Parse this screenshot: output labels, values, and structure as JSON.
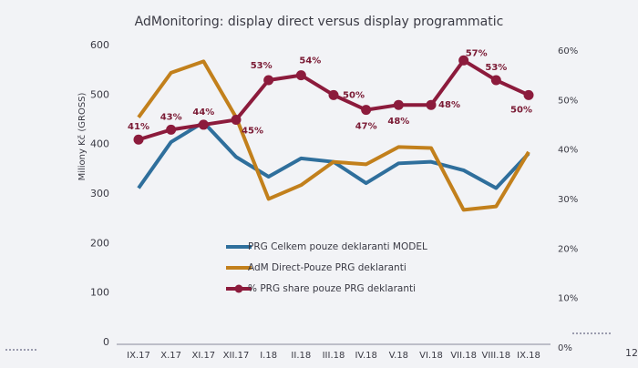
{
  "chart_data": {
    "type": "line",
    "title": "AdMonitoring: display direct versus display programmatic",
    "y_label": "Miliony Kč (GROSS)",
    "categories": [
      "IX.17",
      "X.17",
      "XI.17",
      "XII.17",
      "I.18",
      "II.18",
      "III.18",
      "IV.18",
      "V.18",
      "VI.18",
      "VII.18",
      "VIII.18",
      "IX.18"
    ],
    "series": [
      {
        "name": "PRG Celkem pouze deklaranti MODEL",
        "color": "#2f6f9c",
        "values": [
          312,
          405,
          445,
          375,
          335,
          372,
          365,
          322,
          362,
          365,
          348,
          312,
          382
        ]
      },
      {
        "name": "AdM Direct-Pouze PRG deklaranti",
        "color": "#c2801c",
        "values": [
          455,
          545,
          568,
          455,
          290,
          318,
          365,
          360,
          395,
          393,
          268,
          275,
          385
        ]
      },
      {
        "name": "% PRG share pouze PRG deklaranti",
        "color": "#8c1b3c",
        "axis": "y2",
        "marker": true,
        "values": [
          41,
          43,
          44,
          45,
          53,
          54,
          50,
          47,
          48,
          48,
          57,
          53,
          50
        ],
        "value_labels": [
          "41%",
          "43%",
          "44%",
          "45%",
          "53%",
          "54%",
          "50%",
          "47%",
          "48%",
          "48%",
          "57%",
          "53%",
          "50%"
        ]
      }
    ],
    "ylim": [
      0,
      600
    ],
    "yticks": [
      0,
      100,
      200,
      300,
      400,
      500,
      600
    ],
    "y2lim": [
      0,
      60
    ],
    "y2ticks": [
      {
        "value": 0,
        "label": "0%"
      },
      {
        "value": 10,
        "label": "10%"
      },
      {
        "value": 20,
        "label": "20%"
      },
      {
        "value": 30,
        "label": "30%"
      },
      {
        "value": 40,
        "label": "40%"
      },
      {
        "value": 50,
        "label": "50%"
      },
      {
        "value": 60,
        "label": "60%"
      }
    ],
    "grid": false,
    "legend": "center"
  },
  "page_number": "12"
}
